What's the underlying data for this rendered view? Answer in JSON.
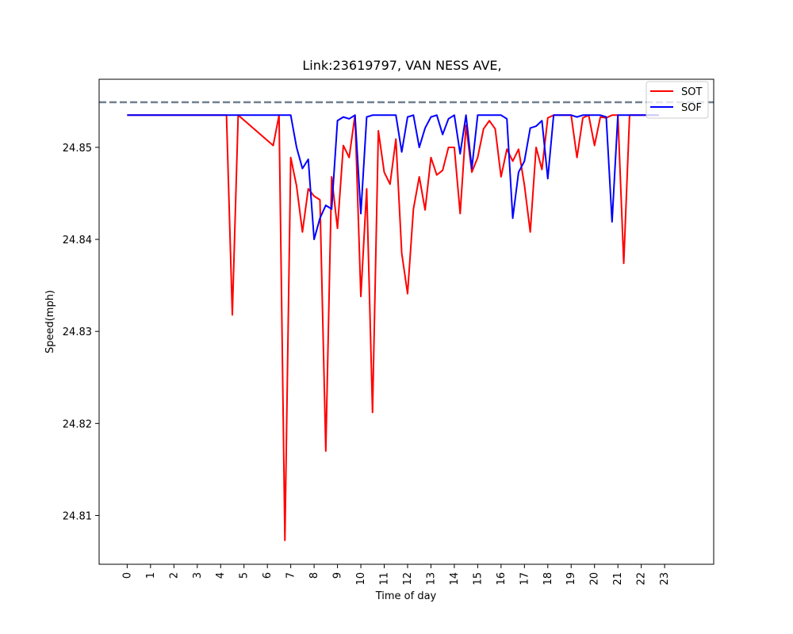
{
  "chart_data": {
    "type": "line",
    "title": "Link:23619797, VAN NESS AVE,",
    "xlabel": "Time of day",
    "ylabel": "Speed(mph)",
    "xticks": [
      "0",
      "1",
      "2",
      "3",
      "4",
      "5",
      "6",
      "7",
      "8",
      "9",
      "10",
      "11",
      "12",
      "13",
      "14",
      "15",
      "16",
      "17",
      "18",
      "19",
      "20",
      "21",
      "22",
      "23"
    ],
    "yticks": [
      "24.81",
      "24.82",
      "24.83",
      "24.84",
      "24.85"
    ],
    "xlim": [
      -1.2,
      25.1
    ],
    "ylim": [
      24.8047,
      24.8574
    ],
    "reference_line": {
      "y": 24.8549,
      "style": "dashed",
      "color": "#708090"
    },
    "legend": {
      "position": "top-right"
    },
    "series": [
      {
        "name": "SOT",
        "color": "#ff0000",
        "x": [
          0,
          4.25,
          4.5,
          4.75,
          6.25,
          6.5,
          6.75,
          7,
          7.25,
          7.5,
          7.75,
          8,
          8.25,
          8.5,
          8.75,
          9,
          9.25,
          9.5,
          9.75,
          10,
          10.25,
          10.5,
          10.75,
          11,
          11.25,
          11.5,
          11.75,
          12,
          12.25,
          12.5,
          12.75,
          13,
          13.25,
          13.5,
          13.75,
          14,
          14.25,
          14.5,
          14.75,
          15,
          15.25,
          15.5,
          15.75,
          16,
          16.25,
          16.5,
          16.75,
          17,
          17.25,
          17.5,
          17.75,
          18,
          18.25,
          18.5,
          19,
          19.25,
          19.5,
          19.75,
          20,
          20.25,
          20.5,
          20.75,
          21,
          21.25,
          21.5,
          22.75
        ],
        "y": [
          24.8535,
          24.8535,
          24.8318,
          24.8535,
          24.8502,
          24.8535,
          24.8073,
          24.8489,
          24.8458,
          24.8408,
          24.8455,
          24.8447,
          24.8443,
          24.817,
          24.8468,
          24.8412,
          24.8502,
          24.8489,
          24.8535,
          24.8338,
          24.8455,
          24.8212,
          24.8518,
          24.8473,
          24.846,
          24.8509,
          24.8385,
          24.8341,
          24.8433,
          24.8468,
          24.8432,
          24.8489,
          24.847,
          24.8475,
          24.85,
          24.85,
          24.8428,
          24.8524,
          24.8473,
          24.8489,
          24.852,
          24.8529,
          24.852,
          24.8468,
          24.8498,
          24.8485,
          24.8498,
          24.8459,
          24.8408,
          24.85,
          24.8476,
          24.8532,
          24.8535,
          24.8535,
          24.8535,
          24.8489,
          24.8532,
          24.8535,
          24.8502,
          24.8533,
          24.8532,
          24.8535,
          24.8535,
          24.8374,
          24.8535,
          24.8535
        ]
      },
      {
        "name": "SOF",
        "color": "#0000ff",
        "x": [
          0,
          7,
          7.25,
          7.5,
          7.75,
          8,
          8.25,
          8.5,
          8.75,
          9,
          9.25,
          9.5,
          9.75,
          10,
          10.25,
          10.5,
          10.75,
          11,
          11.25,
          11.5,
          11.75,
          12,
          12.25,
          12.5,
          12.75,
          13,
          13.25,
          13.5,
          13.75,
          14,
          14.25,
          14.5,
          14.75,
          15,
          15.25,
          15.5,
          15.75,
          16,
          16.25,
          16.5,
          16.75,
          17,
          17.25,
          17.5,
          17.75,
          18,
          18.25,
          18.5,
          19,
          19.25,
          19.5,
          19.75,
          20,
          20.25,
          20.5,
          20.75,
          21,
          21.25,
          21.5,
          22.75
        ],
        "y": [
          24.8535,
          24.8535,
          24.85,
          24.8477,
          24.8487,
          24.84,
          24.8423,
          24.8437,
          24.8433,
          24.8529,
          24.8533,
          24.8531,
          24.8535,
          24.8428,
          24.8533,
          24.8535,
          24.8535,
          24.8535,
          24.8535,
          24.8535,
          24.8495,
          24.8533,
          24.8535,
          24.85,
          24.8521,
          24.8533,
          24.8535,
          24.8514,
          24.8531,
          24.8535,
          24.8493,
          24.8535,
          24.8477,
          24.8535,
          24.8535,
          24.8535,
          24.8535,
          24.8535,
          24.8531,
          24.8423,
          24.8473,
          24.8485,
          24.8521,
          24.8523,
          24.8529,
          24.8466,
          24.8535,
          24.8535,
          24.8535,
          24.8533,
          24.8535,
          24.8535,
          24.8535,
          24.8535,
          24.8533,
          24.8419,
          24.8535,
          24.8535,
          24.8535,
          24.8535
        ]
      }
    ]
  }
}
